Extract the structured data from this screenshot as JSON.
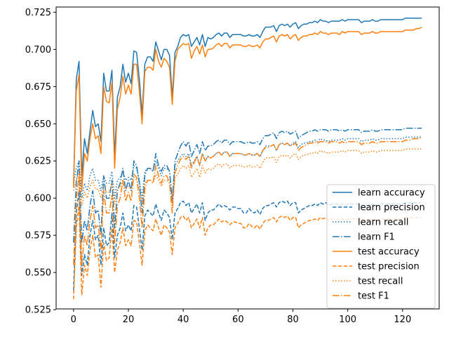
{
  "chart_data": {
    "type": "line",
    "title": "",
    "xlabel": "",
    "ylabel": "",
    "xlim": [
      -6.35,
      133.35
    ],
    "ylim": [
      0.5255,
      0.7285
    ],
    "x_ticks": [
      0,
      20,
      40,
      60,
      80,
      100,
      120
    ],
    "y_ticks": [
      0.525,
      0.55,
      0.575,
      0.6,
      0.625,
      0.65,
      0.675,
      0.7,
      0.725
    ],
    "x_tick_labels": [
      "0",
      "20",
      "40",
      "60",
      "80",
      "100",
      "120"
    ],
    "y_tick_labels": [
      "0.525",
      "0.550",
      "0.575",
      "0.600",
      "0.625",
      "0.650",
      "0.675",
      "0.700",
      "0.725"
    ],
    "grid": false,
    "legend_position": "lower-right",
    "series": [
      {
        "name": "learn accuracy",
        "color": "#1f77b4",
        "dash": "solid",
        "values": [
          0.608,
          0.68,
          0.692,
          0.615,
          0.64,
          0.63,
          0.645,
          0.659,
          0.648,
          0.65,
          0.638,
          0.684,
          0.672,
          0.672,
          0.686,
          0.628,
          0.668,
          0.675,
          0.69,
          0.678,
          0.684,
          0.677,
          0.699,
          0.698,
          0.68,
          0.656,
          0.69,
          0.695,
          0.695,
          0.692,
          0.705,
          0.699,
          0.693,
          0.7,
          0.7,
          0.696,
          0.668,
          0.698,
          0.702,
          0.708,
          0.71,
          0.709,
          0.71,
          0.702,
          0.705,
          0.708,
          0.703,
          0.71,
          0.702,
          0.708,
          0.707,
          0.708,
          0.71,
          0.711,
          0.709,
          0.711,
          0.711,
          0.708,
          0.71,
          0.71,
          0.71,
          0.71,
          0.709,
          0.709,
          0.71,
          0.709,
          0.709,
          0.71,
          0.708,
          0.712,
          0.715,
          0.715,
          0.715,
          0.716,
          0.712,
          0.716,
          0.717,
          0.716,
          0.717,
          0.715,
          0.717,
          0.718,
          0.714,
          0.716,
          0.717,
          0.717,
          0.718,
          0.718,
          0.719,
          0.718,
          0.72,
          0.719,
          0.719,
          0.718,
          0.719,
          0.719,
          0.719,
          0.719,
          0.72,
          0.719,
          0.72,
          0.72,
          0.72,
          0.72,
          0.72,
          0.718,
          0.719,
          0.719,
          0.719,
          0.72,
          0.719,
          0.719,
          0.72,
          0.72,
          0.72,
          0.72,
          0.72,
          0.72,
          0.72,
          0.72,
          0.72,
          0.721,
          0.721,
          0.721,
          0.721,
          0.721,
          0.721,
          0.721
        ]
      },
      {
        "name": "learn precision",
        "color": "#1f77b4",
        "dash": "dashed",
        "values": [
          0.538,
          0.59,
          0.605,
          0.548,
          0.562,
          0.555,
          0.575,
          0.585,
          0.572,
          0.575,
          0.555,
          0.58,
          0.568,
          0.57,
          0.59,
          0.56,
          0.575,
          0.58,
          0.59,
          0.578,
          0.582,
          0.578,
          0.595,
          0.594,
          0.58,
          0.565,
          0.588,
          0.592,
          0.59,
          0.588,
          0.596,
          0.59,
          0.585,
          0.592,
          0.59,
          0.587,
          0.572,
          0.59,
          0.593,
          0.597,
          0.598,
          0.595,
          0.597,
          0.59,
          0.593,
          0.596,
          0.59,
          0.597,
          0.585,
          0.59,
          0.592,
          0.592,
          0.594,
          0.596,
          0.594,
          0.595,
          0.594,
          0.592,
          0.594,
          0.594,
          0.593,
          0.593,
          0.59,
          0.59,
          0.593,
          0.591,
          0.59,
          0.592,
          0.589,
          0.593,
          0.595,
          0.595,
          0.596,
          0.597,
          0.594,
          0.597,
          0.598,
          0.597,
          0.598,
          0.595,
          0.597,
          0.597,
          0.59,
          0.592,
          0.593,
          0.594,
          0.595,
          0.595,
          0.596,
          0.595,
          0.597,
          0.596,
          0.597,
          0.595,
          0.596,
          0.596,
          0.596,
          0.595,
          0.596,
          0.595,
          0.596,
          0.596,
          0.596,
          0.596,
          0.596,
          0.594,
          0.595,
          0.595,
          0.595,
          0.596,
          0.595,
          0.595,
          0.596,
          0.596,
          0.596,
          0.596,
          0.596,
          0.596,
          0.596,
          0.596,
          0.596,
          0.597,
          0.597,
          0.597,
          0.597,
          0.597,
          0.597,
          0.597
        ]
      },
      {
        "name": "learn recall",
        "color": "#1f77b4",
        "dash": "dotted",
        "values": [
          0.61,
          0.62,
          0.625,
          0.6,
          0.61,
          0.605,
          0.615,
          0.62,
          0.612,
          0.612,
          0.605,
          0.615,
          0.61,
          0.61,
          0.618,
          0.6,
          0.612,
          0.614,
          0.618,
          0.612,
          0.614,
          0.612,
          0.622,
          0.62,
          0.612,
          0.6,
          0.618,
          0.62,
          0.62,
          0.618,
          0.625,
          0.62,
          0.615,
          0.62,
          0.62,
          0.618,
          0.6,
          0.622,
          0.625,
          0.628,
          0.63,
          0.628,
          0.63,
          0.622,
          0.625,
          0.628,
          0.622,
          0.63,
          0.625,
          0.628,
          0.627,
          0.628,
          0.63,
          0.631,
          0.629,
          0.631,
          0.631,
          0.628,
          0.63,
          0.63,
          0.63,
          0.63,
          0.629,
          0.629,
          0.63,
          0.629,
          0.629,
          0.63,
          0.628,
          0.632,
          0.635,
          0.635,
          0.635,
          0.636,
          0.632,
          0.636,
          0.637,
          0.636,
          0.637,
          0.635,
          0.637,
          0.638,
          0.634,
          0.636,
          0.637,
          0.637,
          0.638,
          0.638,
          0.639,
          0.638,
          0.64,
          0.639,
          0.639,
          0.638,
          0.639,
          0.639,
          0.639,
          0.639,
          0.64,
          0.639,
          0.64,
          0.64,
          0.64,
          0.64,
          0.64,
          0.638,
          0.639,
          0.639,
          0.639,
          0.64,
          0.639,
          0.639,
          0.64,
          0.64,
          0.64,
          0.64,
          0.64,
          0.64,
          0.64,
          0.64,
          0.64,
          0.641,
          0.641,
          0.641,
          0.641,
          0.641,
          0.641,
          0.641
        ]
      },
      {
        "name": "learn F1",
        "color": "#1f77b4",
        "dash": "dashdot",
        "values": [
          0.57,
          0.61,
          0.625,
          0.57,
          0.585,
          0.578,
          0.595,
          0.605,
          0.59,
          0.592,
          0.575,
          0.615,
          0.6,
          0.6,
          0.612,
          0.58,
          0.605,
          0.61,
          0.62,
          0.605,
          0.612,
          0.605,
          0.625,
          0.622,
          0.61,
          0.59,
          0.615,
          0.62,
          0.62,
          0.618,
          0.63,
          0.622,
          0.618,
          0.622,
          0.622,
          0.618,
          0.598,
          0.625,
          0.63,
          0.635,
          0.638,
          0.635,
          0.638,
          0.628,
          0.632,
          0.636,
          0.63,
          0.638,
          0.632,
          0.635,
          0.635,
          0.636,
          0.638,
          0.639,
          0.637,
          0.639,
          0.639,
          0.636,
          0.638,
          0.638,
          0.638,
          0.638,
          0.637,
          0.637,
          0.638,
          0.637,
          0.637,
          0.638,
          0.636,
          0.64,
          0.642,
          0.642,
          0.643,
          0.644,
          0.64,
          0.644,
          0.645,
          0.644,
          0.645,
          0.643,
          0.644,
          0.645,
          0.64,
          0.642,
          0.643,
          0.644,
          0.645,
          0.645,
          0.646,
          0.645,
          0.646,
          0.646,
          0.646,
          0.645,
          0.646,
          0.646,
          0.646,
          0.645,
          0.646,
          0.645,
          0.646,
          0.646,
          0.646,
          0.646,
          0.646,
          0.644,
          0.645,
          0.645,
          0.645,
          0.646,
          0.645,
          0.645,
          0.646,
          0.646,
          0.646,
          0.646,
          0.646,
          0.646,
          0.646,
          0.646,
          0.646,
          0.647,
          0.647,
          0.647,
          0.647,
          0.647,
          0.647,
          0.647
        ]
      },
      {
        "name": "test accuracy",
        "color": "#ff7f0e",
        "dash": "solid",
        "values": [
          0.607,
          0.672,
          0.683,
          0.605,
          0.63,
          0.625,
          0.64,
          0.65,
          0.64,
          0.642,
          0.63,
          0.675,
          0.665,
          0.664,
          0.678,
          0.62,
          0.66,
          0.668,
          0.682,
          0.67,
          0.676,
          0.67,
          0.69,
          0.69,
          0.672,
          0.65,
          0.685,
          0.688,
          0.688,
          0.686,
          0.7,
          0.692,
          0.688,
          0.694,
          0.692,
          0.688,
          0.663,
          0.692,
          0.7,
          0.702,
          0.704,
          0.703,
          0.704,
          0.694,
          0.699,
          0.702,
          0.697,
          0.703,
          0.695,
          0.7,
          0.7,
          0.701,
          0.703,
          0.704,
          0.702,
          0.704,
          0.704,
          0.701,
          0.703,
          0.703,
          0.703,
          0.703,
          0.702,
          0.702,
          0.703,
          0.702,
          0.702,
          0.703,
          0.701,
          0.705,
          0.707,
          0.707,
          0.708,
          0.709,
          0.705,
          0.709,
          0.71,
          0.709,
          0.71,
          0.707,
          0.709,
          0.71,
          0.706,
          0.708,
          0.709,
          0.709,
          0.71,
          0.71,
          0.711,
          0.71,
          0.712,
          0.711,
          0.711,
          0.71,
          0.711,
          0.711,
          0.711,
          0.71,
          0.712,
          0.711,
          0.712,
          0.712,
          0.712,
          0.712,
          0.712,
          0.71,
          0.711,
          0.711,
          0.711,
          0.712,
          0.711,
          0.711,
          0.712,
          0.712,
          0.712,
          0.712,
          0.712,
          0.712,
          0.712,
          0.712,
          0.712,
          0.713,
          0.713,
          0.713,
          0.713,
          0.714,
          0.714,
          0.715
        ]
      },
      {
        "name": "test precision",
        "color": "#ff7f0e",
        "dash": "dashed",
        "values": [
          0.532,
          0.58,
          0.595,
          0.535,
          0.555,
          0.548,
          0.565,
          0.575,
          0.56,
          0.562,
          0.54,
          0.57,
          0.558,
          0.56,
          0.58,
          0.55,
          0.565,
          0.57,
          0.58,
          0.568,
          0.572,
          0.568,
          0.585,
          0.584,
          0.57,
          0.555,
          0.578,
          0.582,
          0.58,
          0.578,
          0.586,
          0.58,
          0.575,
          0.582,
          0.58,
          0.577,
          0.562,
          0.58,
          0.583,
          0.587,
          0.588,
          0.585,
          0.587,
          0.58,
          0.583,
          0.586,
          0.58,
          0.587,
          0.575,
          0.58,
          0.582,
          0.582,
          0.584,
          0.586,
          0.584,
          0.585,
          0.584,
          0.582,
          0.584,
          0.584,
          0.583,
          0.583,
          0.58,
          0.58,
          0.583,
          0.581,
          0.58,
          0.582,
          0.579,
          0.583,
          0.585,
          0.585,
          0.586,
          0.587,
          0.584,
          0.587,
          0.588,
          0.587,
          0.588,
          0.585,
          0.587,
          0.587,
          0.58,
          0.582,
          0.583,
          0.584,
          0.585,
          0.585,
          0.586,
          0.585,
          0.587,
          0.586,
          0.587,
          0.585,
          0.586,
          0.586,
          0.586,
          0.585,
          0.586,
          0.585,
          0.586,
          0.586,
          0.586,
          0.586,
          0.586,
          0.584,
          0.585,
          0.585,
          0.585,
          0.586,
          0.585,
          0.585,
          0.586,
          0.586,
          0.586,
          0.586,
          0.586,
          0.586,
          0.586,
          0.586,
          0.586,
          0.587,
          0.587,
          0.587,
          0.587,
          0.587,
          0.587,
          0.587
        ]
      },
      {
        "name": "test recall",
        "color": "#ff7f0e",
        "dash": "dotted",
        "values": [
          0.605,
          0.612,
          0.618,
          0.595,
          0.604,
          0.6,
          0.608,
          0.612,
          0.606,
          0.606,
          0.6,
          0.608,
          0.604,
          0.604,
          0.61,
          0.596,
          0.606,
          0.608,
          0.612,
          0.606,
          0.608,
          0.606,
          0.614,
          0.612,
          0.606,
          0.596,
          0.61,
          0.612,
          0.612,
          0.61,
          0.616,
          0.612,
          0.608,
          0.612,
          0.612,
          0.61,
          0.596,
          0.614,
          0.616,
          0.62,
          0.622,
          0.62,
          0.622,
          0.614,
          0.617,
          0.62,
          0.614,
          0.622,
          0.617,
          0.62,
          0.619,
          0.62,
          0.622,
          0.623,
          0.621,
          0.623,
          0.623,
          0.62,
          0.622,
          0.622,
          0.622,
          0.622,
          0.621,
          0.621,
          0.622,
          0.621,
          0.621,
          0.622,
          0.62,
          0.624,
          0.627,
          0.627,
          0.627,
          0.628,
          0.624,
          0.628,
          0.629,
          0.628,
          0.629,
          0.627,
          0.629,
          0.63,
          0.626,
          0.628,
          0.629,
          0.629,
          0.63,
          0.63,
          0.631,
          0.63,
          0.632,
          0.631,
          0.631,
          0.63,
          0.631,
          0.631,
          0.631,
          0.631,
          0.632,
          0.631,
          0.632,
          0.632,
          0.632,
          0.632,
          0.632,
          0.63,
          0.631,
          0.631,
          0.631,
          0.632,
          0.631,
          0.631,
          0.632,
          0.632,
          0.632,
          0.632,
          0.632,
          0.632,
          0.632,
          0.632,
          0.632,
          0.633,
          0.633,
          0.633,
          0.633,
          0.633,
          0.633,
          0.633
        ]
      },
      {
        "name": "test F1",
        "color": "#ff7f0e",
        "dash": "dashdot",
        "values": [
          0.555,
          0.6,
          0.615,
          0.555,
          0.575,
          0.568,
          0.585,
          0.595,
          0.58,
          0.582,
          0.565,
          0.605,
          0.59,
          0.59,
          0.602,
          0.57,
          0.595,
          0.6,
          0.612,
          0.598,
          0.604,
          0.598,
          0.616,
          0.614,
          0.6,
          0.58,
          0.606,
          0.612,
          0.612,
          0.61,
          0.622,
          0.615,
          0.61,
          0.615,
          0.615,
          0.61,
          0.59,
          0.617,
          0.622,
          0.626,
          0.628,
          0.626,
          0.628,
          0.62,
          0.624,
          0.628,
          0.622,
          0.63,
          0.625,
          0.628,
          0.627,
          0.628,
          0.63,
          0.631,
          0.629,
          0.631,
          0.631,
          0.628,
          0.63,
          0.63,
          0.63,
          0.63,
          0.629,
          0.629,
          0.63,
          0.629,
          0.629,
          0.63,
          0.628,
          0.632,
          0.634,
          0.634,
          0.635,
          0.636,
          0.632,
          0.636,
          0.637,
          0.636,
          0.637,
          0.635,
          0.636,
          0.637,
          0.632,
          0.634,
          0.635,
          0.636,
          0.637,
          0.637,
          0.638,
          0.637,
          0.638,
          0.638,
          0.638,
          0.637,
          0.638,
          0.638,
          0.638,
          0.637,
          0.638,
          0.637,
          0.638,
          0.638,
          0.638,
          0.638,
          0.638,
          0.636,
          0.637,
          0.637,
          0.637,
          0.638,
          0.637,
          0.637,
          0.638,
          0.638,
          0.638,
          0.638,
          0.638,
          0.638,
          0.638,
          0.638,
          0.638,
          0.639,
          0.639,
          0.639,
          0.64,
          0.64,
          0.64,
          0.641
        ]
      }
    ]
  }
}
